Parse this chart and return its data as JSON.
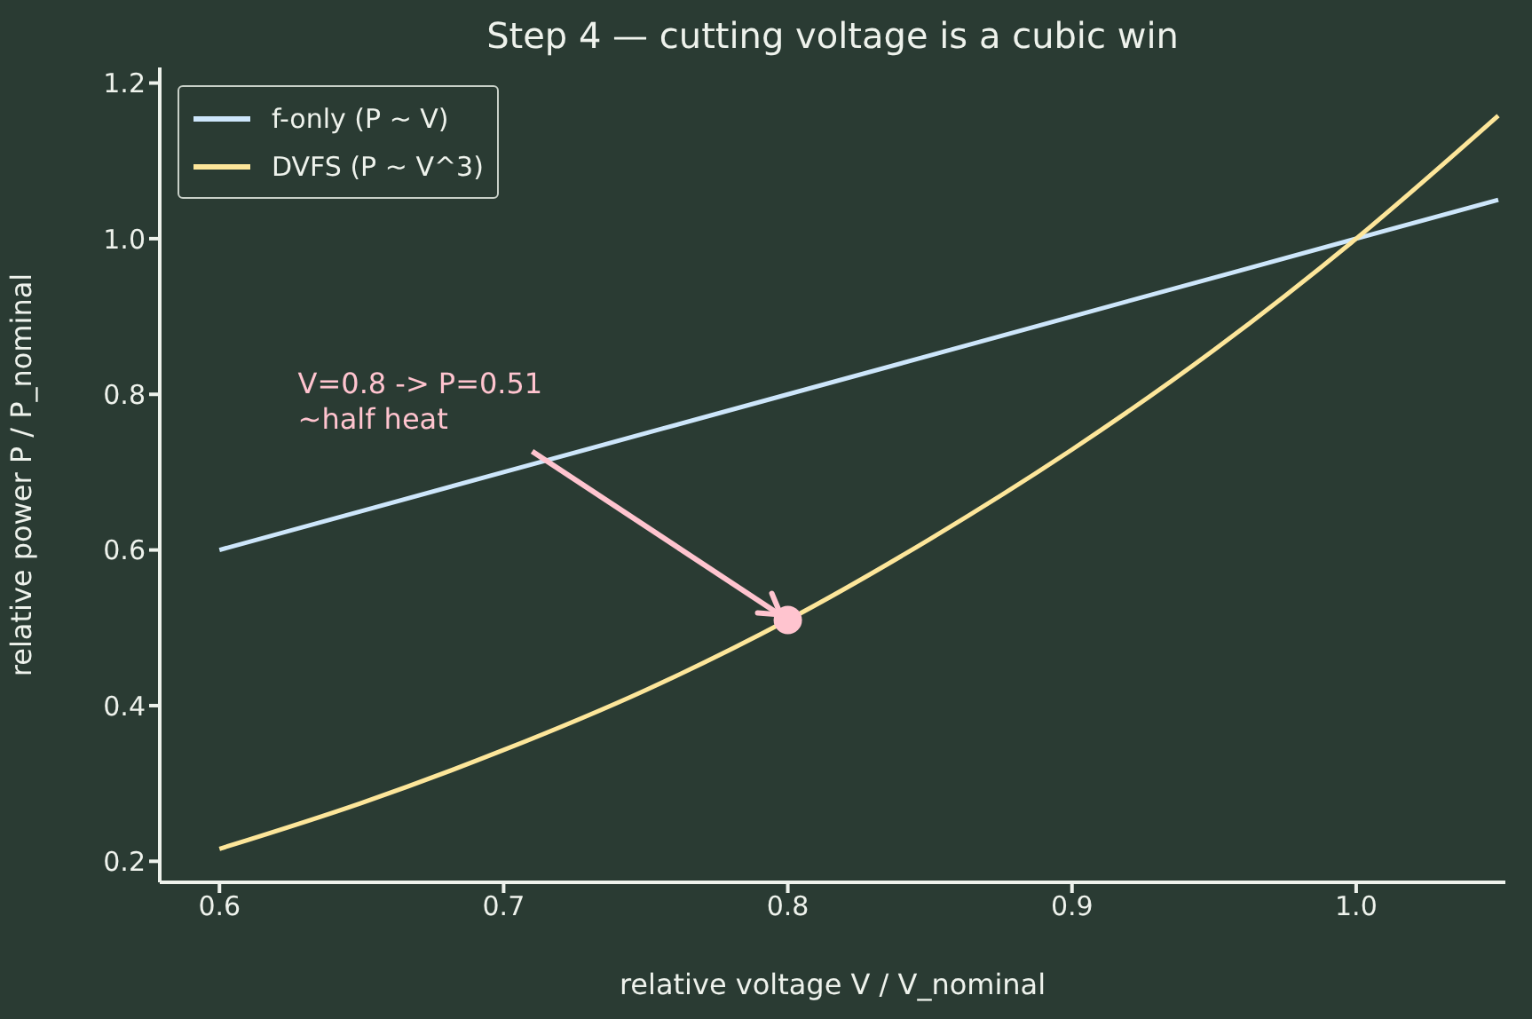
{
  "chart_data": {
    "type": "line",
    "title": "Step 4 — cutting voltage is a cubic win",
    "xlabel": "relative voltage  V / V_nominal",
    "ylabel": "relative power  P / P_nominal",
    "xlim": [
      0.579,
      1.0525
    ],
    "ylim": [
      0.173,
      1.22
    ],
    "xticks": [
      0.6,
      0.7,
      0.8,
      0.9,
      {
        "value": 1,
        "label": "1.0"
      }
    ],
    "yticks": [
      0.2,
      0.4,
      0.6,
      0.8,
      {
        "value": 1,
        "label": "1.0"
      },
      1.2
    ],
    "grid": false,
    "legend": "top left",
    "series": [
      {
        "name": "f-only  (P ~ V)",
        "color": "#cde6fb",
        "x": [
          0.6,
          0.7,
          0.8,
          0.9,
          1.0,
          1.05
        ],
        "values": [
          0.6,
          0.7,
          0.8,
          0.9,
          1.0,
          1.05
        ]
      },
      {
        "name": "DVFS  (P ~ V^3)",
        "color": "#fde69a",
        "x": [
          0.6,
          0.65,
          0.7,
          0.75,
          0.8,
          0.85,
          0.9,
          0.95,
          1.0,
          1.05
        ],
        "values": [
          0.216,
          0.275,
          0.343,
          0.42,
          0.51,
          0.614,
          0.729,
          0.857,
          1.0,
          1.158
        ]
      },
      {
        "type": "scatter",
        "color": "#ffc4cf",
        "x": [
          0.8
        ],
        "values": [
          0.51
        ]
      }
    ],
    "annotations": [
      {
        "text": "V=0.8 -> P=0.51\n~half heat",
        "x": 0.8,
        "y": 0.51
      }
    ]
  }
}
